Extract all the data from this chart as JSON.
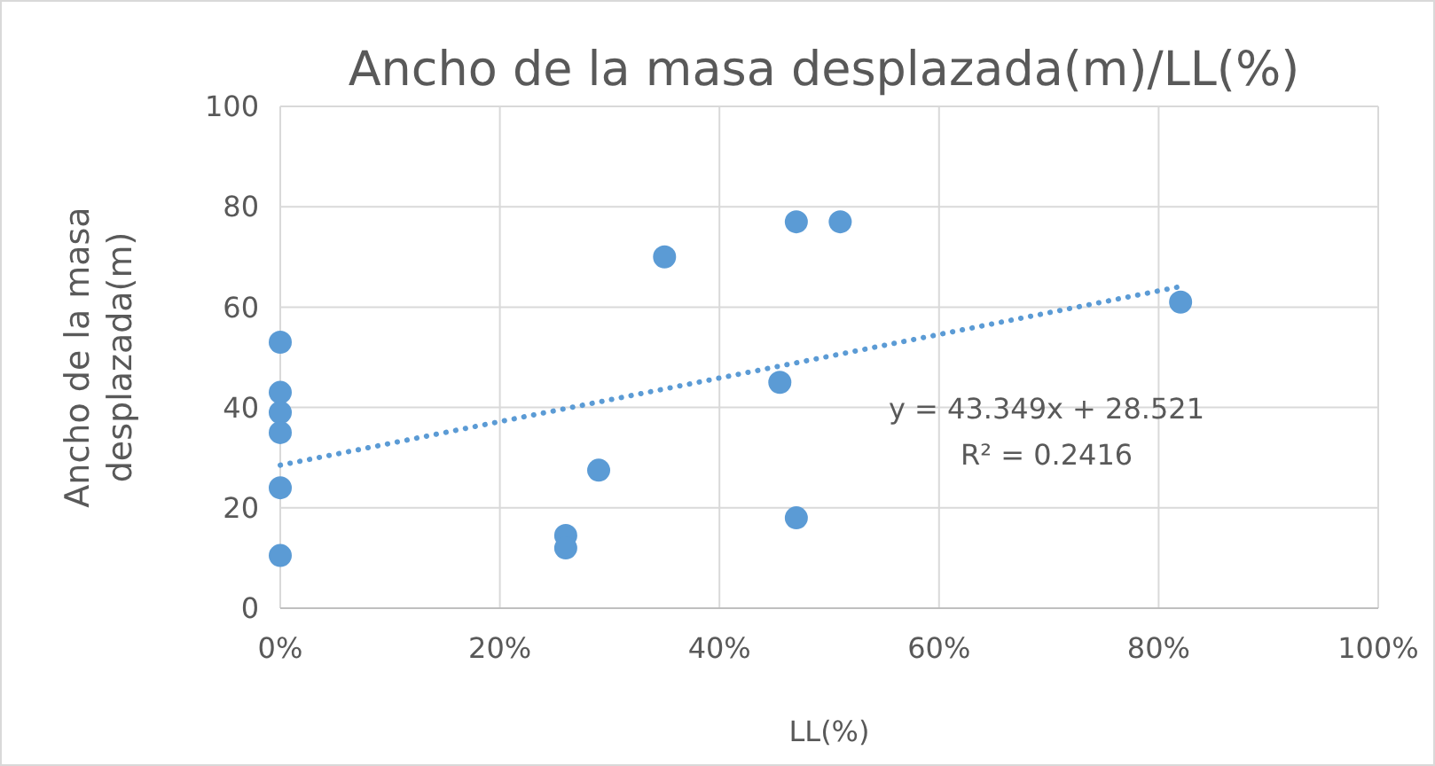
{
  "chart_data": {
    "type": "scatter",
    "title": "Ancho de la masa desplazada(m)/LL(%)",
    "xlabel": "LL(%)",
    "ylabel": "Ancho de la masa desplazada(m)",
    "xlim": [
      0,
      1
    ],
    "xticks": [
      {
        "value": 0,
        "label": "0%"
      },
      {
        "value": 0.2,
        "label": "20%"
      },
      {
        "value": 0.4,
        "label": "40%"
      },
      {
        "value": 0.6,
        "label": "60%"
      },
      {
        "value": 0.8,
        "label": "80%"
      },
      {
        "value": 1,
        "label": "100%"
      }
    ],
    "ylim": [
      0,
      100
    ],
    "yticks": [
      0,
      20,
      40,
      60,
      80,
      100
    ],
    "grid": true,
    "marker": "circle",
    "series": [
      {
        "color": "#5b9bd5",
        "x": [
          0,
          0,
          0,
          0,
          0,
          0,
          0.26,
          0.26,
          0.29,
          0.35,
          0.455,
          0.47,
          0.47,
          0.51,
          0.82
        ],
        "values": [
          53,
          43,
          39,
          35,
          24,
          10.5,
          14.5,
          12,
          27.5,
          70,
          45,
          77,
          18,
          77,
          61
        ]
      },
      {
        "type": "line",
        "color": "#5b9bd5",
        "line_style": "dotted",
        "marker": "none",
        "x": [
          0,
          0.82
        ],
        "values": [
          28.5,
          64.1
        ]
      }
    ],
    "annotations": [
      "y = 43.349x + 28.521",
      "R² = 0.2416"
    ]
  }
}
